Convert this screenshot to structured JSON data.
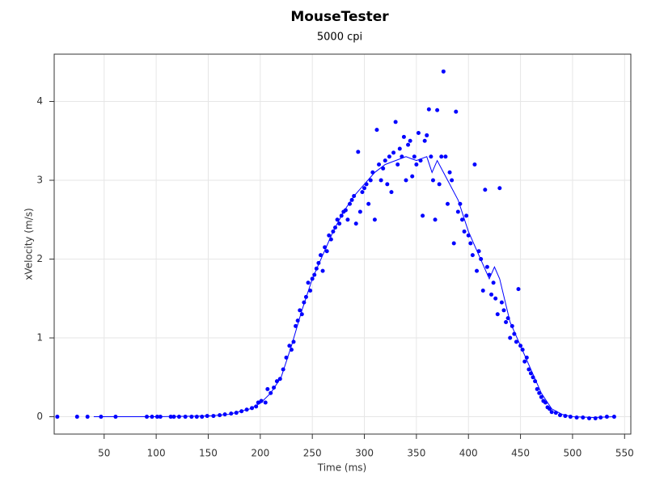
{
  "chart_data": {
    "type": "scatter",
    "title": "MouseTester",
    "subtitle": "5000 cpi",
    "x_label": "Time (ms)",
    "y_label": "xVelocity (m/s)",
    "color": "#0000ff",
    "grid": true,
    "xlim": [
      2,
      556
    ],
    "ylim": [
      -0.22,
      4.6
    ],
    "xticks": [
      50,
      100,
      150,
      200,
      250,
      300,
      350,
      400,
      450,
      500,
      550
    ],
    "yticks": [
      0,
      1,
      2,
      3,
      4
    ],
    "x": [
      5,
      24,
      34,
      47,
      61,
      91,
      96,
      101,
      104,
      114,
      117,
      122,
      128,
      134,
      139,
      144,
      149,
      155,
      161,
      166,
      172,
      177,
      182,
      187,
      192,
      196,
      198,
      201,
      205,
      207,
      210,
      213,
      216,
      219,
      222,
      225,
      228,
      230,
      232,
      234,
      236,
      238,
      240,
      242,
      244,
      246,
      248,
      250,
      252,
      254,
      256,
      258,
      260,
      262,
      264,
      266,
      268,
      270,
      272,
      274,
      276,
      278,
      280,
      282,
      284,
      286,
      288,
      290,
      292,
      294,
      296,
      298,
      300,
      302,
      304,
      306,
      308,
      310,
      312,
      314,
      316,
      318,
      320,
      322,
      324,
      326,
      328,
      330,
      332,
      334,
      336,
      338,
      340,
      342,
      344,
      346,
      348,
      350,
      352,
      354,
      356,
      358,
      360,
      362,
      364,
      366,
      368,
      370,
      372,
      374,
      376,
      378,
      380,
      382,
      384,
      386,
      388,
      390,
      392,
      394,
      396,
      398,
      400,
      402,
      404,
      406,
      408,
      410,
      412,
      414,
      416,
      418,
      420,
      422,
      424,
      426,
      428,
      430,
      432,
      434,
      436,
      438,
      440,
      442,
      444,
      446,
      448,
      450,
      452,
      454,
      456,
      458,
      460,
      462,
      464,
      466,
      468,
      470,
      472,
      474,
      476,
      478,
      480,
      484,
      488,
      493,
      498,
      504,
      510,
      516,
      522,
      527,
      533,
      540
    ],
    "values": [
      0,
      0,
      0,
      0,
      0,
      0,
      0,
      0,
      0,
      0,
      0,
      0,
      0,
      0,
      0,
      0,
      0.01,
      0.01,
      0.02,
      0.03,
      0.04,
      0.05,
      0.07,
      0.09,
      0.11,
      0.13,
      0.18,
      0.2,
      0.18,
      0.35,
      0.3,
      0.37,
      0.45,
      0.48,
      0.6,
      0.75,
      0.9,
      0.85,
      0.95,
      1.15,
      1.22,
      1.35,
      1.3,
      1.45,
      1.52,
      1.7,
      1.6,
      1.75,
      1.8,
      1.88,
      1.95,
      2.05,
      1.85,
      2.15,
      2.1,
      2.3,
      2.25,
      2.35,
      2.4,
      2.5,
      2.45,
      2.55,
      2.6,
      2.62,
      2.5,
      2.7,
      2.75,
      2.8,
      2.45,
      3.36,
      2.6,
      2.85,
      2.9,
      2.95,
      2.7,
      3.0,
      3.1,
      2.5,
      3.64,
      3.2,
      3.0,
      3.15,
      3.25,
      2.95,
      3.3,
      2.85,
      3.35,
      3.74,
      3.2,
      3.4,
      3.3,
      3.55,
      3.0,
      3.45,
      3.5,
      3.05,
      3.3,
      3.2,
      3.6,
      3.25,
      2.55,
      3.5,
      3.57,
      3.9,
      3.3,
      3.0,
      2.5,
      3.89,
      2.95,
      3.3,
      4.38,
      3.3,
      2.7,
      3.1,
      3.0,
      2.2,
      3.87,
      2.6,
      2.7,
      2.5,
      2.35,
      2.55,
      2.3,
      2.2,
      2.05,
      3.2,
      1.85,
      2.1,
      2.0,
      1.6,
      2.88,
      1.9,
      1.8,
      1.55,
      1.7,
      1.5,
      1.3,
      2.9,
      1.45,
      1.35,
      1.2,
      1.25,
      1.0,
      1.15,
      1.05,
      0.95,
      1.62,
      0.9,
      0.85,
      0.7,
      0.75,
      0.6,
      0.55,
      0.5,
      0.45,
      0.35,
      0.3,
      0.25,
      0.2,
      0.18,
      0.12,
      0.1,
      0.06,
      0.05,
      0.02,
      0.01,
      0,
      -0.01,
      -0.01,
      -0.02,
      -0.02,
      -0.01,
      0,
      0
    ],
    "line": {
      "color": "#0000ff",
      "x": [
        40,
        100,
        150,
        170,
        190,
        200,
        210,
        220,
        230,
        240,
        250,
        260,
        270,
        280,
        290,
        300,
        310,
        320,
        330,
        340,
        350,
        360,
        365,
        370,
        380,
        390,
        400,
        410,
        420,
        425,
        430,
        440,
        450,
        460,
        470,
        480,
        490,
        500,
        520,
        540
      ],
      "values": [
        0,
        0,
        0.01,
        0.03,
        0.1,
        0.17,
        0.3,
        0.5,
        0.9,
        1.35,
        1.75,
        2.05,
        2.35,
        2.6,
        2.8,
        2.95,
        3.1,
        3.2,
        3.25,
        3.3,
        3.25,
        3.3,
        3.1,
        3.25,
        3.0,
        2.75,
        2.35,
        2.05,
        1.75,
        1.9,
        1.75,
        1.2,
        0.9,
        0.6,
        0.3,
        0.1,
        0.03,
        0,
        -0.01,
        0
      ]
    }
  }
}
